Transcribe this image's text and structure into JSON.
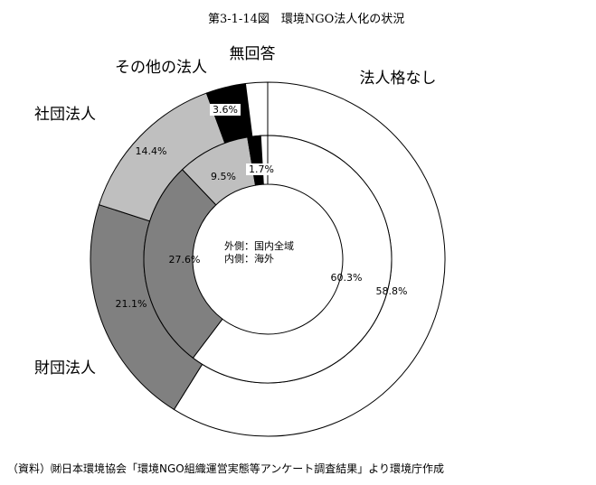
{
  "title": "第3-1-14図　環境NGO法人化の状況",
  "source": "（資料）㈶日本環境協会「環境NGO組織運営実態等アンケート調査結果」より環境庁作成",
  "chart_data": {
    "type": "donut",
    "center_label": [
      "外側：国内全域",
      "内側：海外"
    ],
    "categories": [
      "法人格なし",
      "財団法人",
      "社団法人",
      "その他の法人",
      "無回答"
    ],
    "colors": [
      "#ffffff",
      "#808080",
      "#bfbfbf",
      "#000000",
      "#ffffff"
    ],
    "series": [
      {
        "values": [
          58.8,
          21.1,
          14.4,
          3.6,
          2.0
        ],
        "labels": [
          "58.8%",
          "21.1%",
          "14.4%",
          "3.6%",
          ""
        ]
      },
      {
        "values": [
          60.3,
          27.6,
          9.5,
          1.7,
          0.9
        ],
        "labels": [
          "60.3%",
          "27.6%",
          "9.5%",
          "1.7%",
          ""
        ]
      }
    ]
  }
}
